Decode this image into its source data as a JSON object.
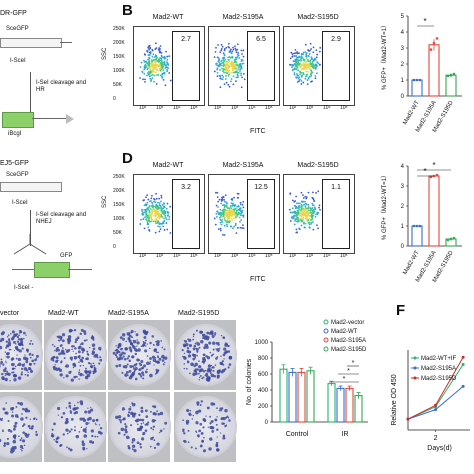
{
  "colors": {
    "wt": "#3b6fd0",
    "s195a": "#e5473c",
    "s195d": "#35a853",
    "vector": "#27b56e",
    "gfp_box": "#8cd06a",
    "colony": "#3d4a9e",
    "ir_line_red": "#d62a2a"
  },
  "panelA": {
    "title_hr": "DR-GFP",
    "sce": "SceGFP",
    "isce1": "I-SceI",
    "arrow1": "I-SeI cleavage and HR",
    "bcgl": "iBcgI",
    "title_nhej": "EJ5-GFP",
    "sce2": "SceGFP",
    "isce2": "I-SceI",
    "arrow2": "I-SeI cleavage and NHEJ",
    "gfp": "GFP",
    "isce3": "I-SceI -"
  },
  "panelB": {
    "label": "B",
    "facs": [
      {
        "title": "Mad2-WT",
        "value": "2.7"
      },
      {
        "title": "Mad2-S195A",
        "value": "6.5"
      },
      {
        "title": "Mad2-S195D",
        "value": "2.9"
      }
    ],
    "ylabel": "SSC",
    "xlabel": "FITC",
    "yticks": [
      "250K",
      "200K",
      "150K",
      "100K",
      "50K",
      "0"
    ],
    "xticks": [
      "10²",
      "10³",
      "10⁴",
      "10⁵"
    ],
    "sig": "*"
  },
  "panelD": {
    "label": "D",
    "facs": [
      {
        "title": "Mad2-WT",
        "value": "3.2"
      },
      {
        "title": "Mad2-S195A",
        "value": "12.5"
      },
      {
        "title": "Mad2-S195D",
        "value": "1.1"
      }
    ],
    "ylabel": "SSC",
    "xlabel": "FITC",
    "yticks": [
      "250K",
      "200K",
      "150K",
      "100K",
      "50K",
      "0"
    ],
    "xticks": [
      "10²",
      "10³",
      "10⁴",
      "10⁵"
    ],
    "sig1": "*",
    "sig2": "*"
  },
  "panelE": {
    "col_labels": [
      "vector",
      "Mad2-WT",
      "Mad2-S195A",
      "Mad2-S195D"
    ]
  },
  "panelF": {
    "label": "F",
    "ylabel": "Relative OD 450",
    "xlabel": "Days(d)",
    "xtick": "2",
    "legend": [
      "Mad2-WT+IF",
      "Mad2-S195A",
      "Mad2-S195D"
    ]
  },
  "chart_data": [
    {
      "type": "bar",
      "id": "B",
      "categories": [
        "Mad2-WT",
        "Mad2-S195A",
        "Mad2-S195D"
      ],
      "values": [
        1.0,
        3.2,
        1.3
      ],
      "errors": [
        0.05,
        0.35,
        0.12
      ],
      "points": [
        [
          1.0,
          1.0,
          1.0
        ],
        [
          2.9,
          3.3,
          3.6
        ],
        [
          1.25,
          1.3,
          1.38
        ]
      ],
      "ylabel": "% GFP+（Mad2-WT=1）",
      "ylim": [
        0,
        5
      ],
      "yticks": [
        0,
        1,
        2,
        3,
        4,
        5
      ]
    },
    {
      "type": "bar",
      "id": "D",
      "categories": [
        "Mad2-WT",
        "Mad2-S195A",
        "Mad2-S195D"
      ],
      "values": [
        1.0,
        3.5,
        0.35
      ],
      "errors": [
        0.05,
        0.05,
        0.08
      ],
      "points": [
        [
          1.0,
          1.0,
          1.0
        ],
        [
          3.45,
          3.5,
          3.55
        ],
        [
          0.3,
          0.35,
          0.4
        ]
      ],
      "ylabel": "% GFP+（Mad2-WT=1）",
      "ylim": [
        0,
        4
      ],
      "yticks": [
        0,
        1,
        2,
        3,
        4
      ]
    },
    {
      "type": "bar",
      "id": "E",
      "groups": [
        "Control",
        "IR"
      ],
      "series": [
        {
          "name": "Mad2-vector",
          "values": [
            660,
            480
          ],
          "errors": [
            55,
            30
          ]
        },
        {
          "name": "Mad2-WT",
          "values": [
            620,
            420
          ],
          "errors": [
            50,
            30
          ]
        },
        {
          "name": "Mad2-S195A",
          "values": [
            620,
            420
          ],
          "errors": [
            50,
            30
          ]
        },
        {
          "name": "Mad2-S195D",
          "values": [
            640,
            330
          ],
          "errors": [
            45,
            40
          ]
        }
      ],
      "ylabel": "No. of colonies",
      "ylim": [
        0,
        1000
      ],
      "yticks": [
        0,
        200,
        400,
        600,
        800,
        1000
      ],
      "sig": [
        "*",
        "*",
        "*"
      ]
    },
    {
      "type": "line",
      "id": "F",
      "x": [
        0,
        2,
        4
      ],
      "series": [
        {
          "name": "Mad2-WT+IF",
          "values": [
            0.15,
            0.32,
            0.9
          ]
        },
        {
          "name": "Mad2-S195A",
          "values": [
            0.15,
            0.28,
            0.6
          ]
        },
        {
          "name": "Mad2-S195D",
          "values": [
            0.15,
            0.34,
            1.0
          ]
        }
      ],
      "xticks": [
        2
      ],
      "xlabel": "Days(d)",
      "ylabel": "Relative OD 450"
    }
  ]
}
